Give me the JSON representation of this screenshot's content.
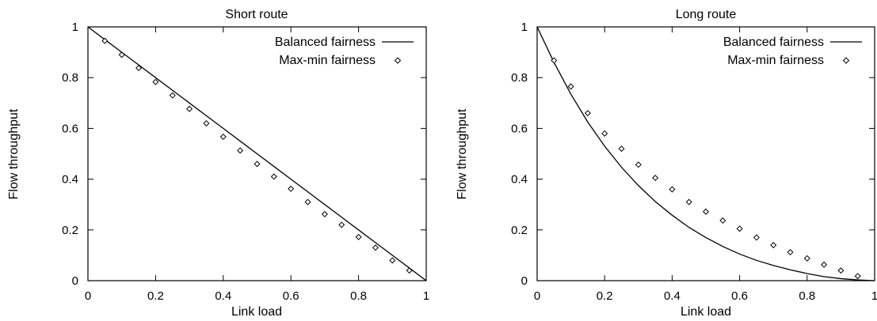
{
  "chart_data": [
    {
      "type": "line",
      "title": "Short route",
      "xlabel": "Link load",
      "ylabel": "Flow throughput",
      "xlim": [
        0,
        1
      ],
      "ylim": [
        0,
        1
      ],
      "xticks": [
        "0",
        "0.2",
        "0.4",
        "0.6",
        "0.8",
        "1"
      ],
      "yticks": [
        "0",
        "0.2",
        "0.4",
        "0.6",
        "0.8",
        "1"
      ],
      "grid": false,
      "legend": "top-right",
      "series": [
        {
          "name": "Balanced fairness",
          "style": "line",
          "x": [
            0,
            0.05,
            0.1,
            0.15,
            0.2,
            0.25,
            0.3,
            0.35,
            0.4,
            0.45,
            0.5,
            0.55,
            0.6,
            0.65,
            0.7,
            0.75,
            0.8,
            0.85,
            0.9,
            0.95,
            1
          ],
          "y": [
            1,
            0.95,
            0.9,
            0.85,
            0.8,
            0.75,
            0.7,
            0.65,
            0.6,
            0.55,
            0.5,
            0.45,
            0.4,
            0.35,
            0.3,
            0.25,
            0.2,
            0.15,
            0.1,
            0.05,
            0
          ]
        },
        {
          "name": "Max-min fairness",
          "style": "markers",
          "x": [
            0.05,
            0.1,
            0.15,
            0.2,
            0.25,
            0.3,
            0.35,
            0.4,
            0.45,
            0.5,
            0.55,
            0.6,
            0.65,
            0.7,
            0.75,
            0.8,
            0.85,
            0.9,
            0.95
          ],
          "y": [
            0.945,
            0.89,
            0.838,
            0.783,
            0.73,
            0.677,
            0.62,
            0.567,
            0.513,
            0.46,
            0.41,
            0.362,
            0.31,
            0.262,
            0.22,
            0.172,
            0.13,
            0.08,
            0.04
          ]
        }
      ]
    },
    {
      "type": "line",
      "title": "Long route",
      "xlabel": "Link load",
      "ylabel": "Flow throughput",
      "xlim": [
        0,
        1
      ],
      "ylim": [
        0,
        1
      ],
      "xticks": [
        "0",
        "0.2",
        "0.4",
        "0.6",
        "0.8",
        "1"
      ],
      "yticks": [
        "0",
        "0.2",
        "0.4",
        "0.6",
        "0.8",
        "1"
      ],
      "grid": false,
      "legend": "top-right",
      "series": [
        {
          "name": "Balanced fairness",
          "style": "line",
          "x": [
            0,
            0.05,
            0.1,
            0.15,
            0.2,
            0.25,
            0.3,
            0.35,
            0.4,
            0.45,
            0.5,
            0.55,
            0.6,
            0.65,
            0.7,
            0.75,
            0.8,
            0.85,
            0.9,
            0.95,
            1
          ],
          "y": [
            1,
            0.86,
            0.735,
            0.625,
            0.53,
            0.447,
            0.375,
            0.312,
            0.258,
            0.21,
            0.17,
            0.135,
            0.105,
            0.08,
            0.06,
            0.043,
            0.028,
            0.016,
            0.008,
            0.003,
            0
          ]
        },
        {
          "name": "Max-min fairness",
          "style": "markers",
          "x": [
            0.05,
            0.1,
            0.15,
            0.2,
            0.25,
            0.3,
            0.35,
            0.4,
            0.45,
            0.5,
            0.55,
            0.6,
            0.65,
            0.7,
            0.75,
            0.8,
            0.85,
            0.9,
            0.95
          ],
          "y": [
            0.868,
            0.765,
            0.66,
            0.58,
            0.52,
            0.457,
            0.405,
            0.36,
            0.31,
            0.272,
            0.237,
            0.205,
            0.17,
            0.14,
            0.112,
            0.088,
            0.063,
            0.04,
            0.018
          ]
        }
      ]
    }
  ]
}
